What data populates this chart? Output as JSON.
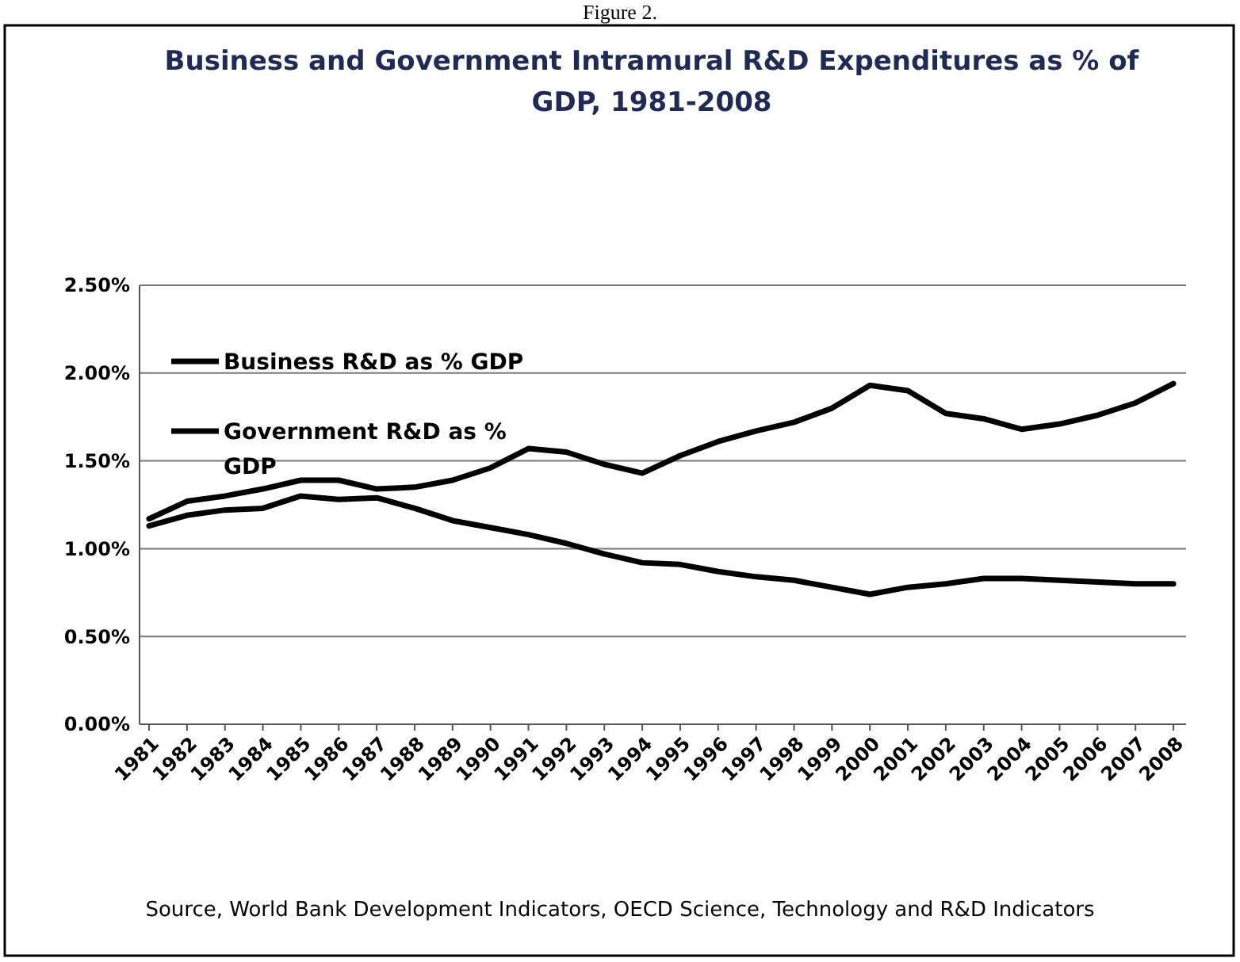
{
  "chart_data": {
    "type": "line",
    "title": "Business and Government Intramural R&D Expenditures as % of GDP, 1981-2008",
    "annotations": [
      "Figure 2.",
      "Source, World Bank Development Indicators, OECD Science, Technology and R&D Indicators"
    ],
    "categories": [
      "1981",
      "1982",
      "1983",
      "1984",
      "1985",
      "1986",
      "1987",
      "1988",
      "1989",
      "1990",
      "1991",
      "1992",
      "1993",
      "1994",
      "1995",
      "1996",
      "1997",
      "1998",
      "1999",
      "2000",
      "2001",
      "2002",
      "2003",
      "2004",
      "2005",
      "2006",
      "2007",
      "2008"
    ],
    "series": [
      {
        "name": "Business R&D as % GDP",
        "color": "#000000",
        "values": [
          1.17,
          1.27,
          1.3,
          1.34,
          1.39,
          1.39,
          1.34,
          1.35,
          1.39,
          1.46,
          1.57,
          1.55,
          1.48,
          1.43,
          1.53,
          1.61,
          1.67,
          1.72,
          1.8,
          1.93,
          1.9,
          1.77,
          1.74,
          1.68,
          1.71,
          1.76,
          1.83,
          1.94
        ]
      },
      {
        "name": "Government R&D as % GDP",
        "color": "#000000",
        "values": [
          1.13,
          1.19,
          1.22,
          1.23,
          1.3,
          1.28,
          1.29,
          1.23,
          1.16,
          1.12,
          1.08,
          1.03,
          0.97,
          0.92,
          0.91,
          0.87,
          0.84,
          0.82,
          0.78,
          0.74,
          0.78,
          0.8,
          0.83,
          0.83,
          0.82,
          0.81,
          0.8,
          0.8
        ]
      }
    ],
    "ylim": [
      0,
      2.5
    ],
    "yticks": [
      {
        "value": 0,
        "label": "0.00%"
      },
      {
        "value": 0.5,
        "label": "0.50%"
      },
      {
        "value": 1,
        "label": "1.00%"
      },
      {
        "value": 1.5,
        "label": "1.50%"
      },
      {
        "value": 2,
        "label": "2.00%"
      },
      {
        "value": 2.5,
        "label": "2.50%"
      }
    ],
    "grid": "y",
    "legend": "top left",
    "line_style": "solid"
  }
}
